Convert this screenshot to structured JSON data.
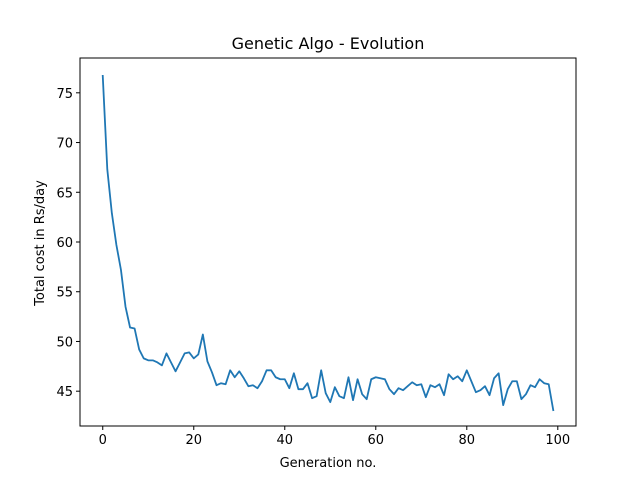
{
  "chart_data": {
    "type": "line",
    "title": "Genetic Algo - Evolution",
    "xlabel": "Generation no.",
    "ylabel": "Total cost in Rs/day",
    "xlim": [
      -5,
      104
    ],
    "ylim": [
      41.5,
      78.5
    ],
    "xticks": [
      0,
      20,
      40,
      60,
      80,
      100
    ],
    "yticks": [
      45,
      50,
      55,
      60,
      65,
      70,
      75
    ],
    "grid": false,
    "line_color": "#1f77b4",
    "series": [
      {
        "x": [
          0,
          1,
          2,
          3,
          4,
          5,
          6,
          7,
          8,
          9,
          10,
          11,
          12,
          13,
          14,
          15,
          16,
          17,
          18,
          19,
          20,
          21,
          22,
          23,
          24,
          25,
          26,
          27,
          28,
          29,
          30,
          31,
          32,
          33,
          34,
          35,
          36,
          37,
          38,
          39,
          40,
          41,
          42,
          43,
          44,
          45,
          46,
          47,
          48,
          49,
          50,
          51,
          52,
          53,
          54,
          55,
          56,
          57,
          58,
          59,
          60,
          61,
          62,
          63,
          64,
          65,
          66,
          67,
          68,
          69,
          70,
          71,
          72,
          73,
          74,
          75,
          76,
          77,
          78,
          79,
          80,
          81,
          82,
          83,
          84,
          85,
          86,
          87,
          88,
          89,
          90,
          91,
          92,
          93,
          94,
          95,
          96,
          97,
          98,
          99
        ],
        "values": [
          76.7,
          67.3,
          62.9,
          59.7,
          57.2,
          53.5,
          51.4,
          51.3,
          49.2,
          48.3,
          48.1,
          48.1,
          47.9,
          47.6,
          48.8,
          47.9,
          47.0,
          47.9,
          48.8,
          48.9,
          48.3,
          48.7,
          50.7,
          48.0,
          46.9,
          45.6,
          45.8,
          45.7,
          47.1,
          46.4,
          47.0,
          46.3,
          45.5,
          45.6,
          45.3,
          46.0,
          47.1,
          47.1,
          46.4,
          46.2,
          46.2,
          45.3,
          46.8,
          45.2,
          45.2,
          45.8,
          44.3,
          44.5,
          47.1,
          44.8,
          43.9,
          45.4,
          44.5,
          44.3,
          46.4,
          44.1,
          46.2,
          44.7,
          44.2,
          46.2,
          46.4,
          46.3,
          46.2,
          45.2,
          44.7,
          45.3,
          45.1,
          45.5,
          45.9,
          45.6,
          45.7,
          44.4,
          45.6,
          45.4,
          45.7,
          44.6,
          46.7,
          46.2,
          46.5,
          46.0,
          47.1,
          46.0,
          44.9,
          45.1,
          45.5,
          44.6,
          46.3,
          46.8,
          43.6,
          45.2,
          46.0,
          46.0,
          44.2,
          44.7,
          45.6,
          45.4,
          46.2,
          45.8,
          45.7,
          43.1
        ]
      }
    ]
  }
}
